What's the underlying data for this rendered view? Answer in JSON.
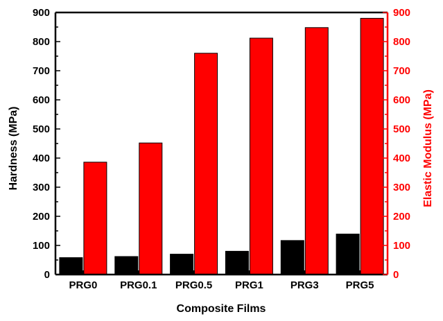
{
  "chart_data": {
    "type": "bar",
    "title": "",
    "xlabel": "Composite Films",
    "ylabel": "Hardness (MPa)",
    "y2label": "Elastic Modulus (MPa)",
    "categories": [
      "PRG0",
      "PRG0.1",
      "PRG0.5",
      "PRG1",
      "PRG3",
      "PRG5"
    ],
    "series": [
      {
        "axis": "left",
        "color": "#000000",
        "values": [
          58,
          62,
          70,
          80,
          117,
          139
        ]
      },
      {
        "axis": "right",
        "color": "#ff0000",
        "values": [
          386,
          452,
          760,
          812,
          848,
          880
        ]
      }
    ],
    "ylim": [
      0,
      900
    ],
    "y2lim": [
      0,
      900
    ],
    "yticks": [
      0,
      100,
      200,
      300,
      400,
      500,
      600,
      700,
      800,
      900
    ],
    "y2ticks": [
      0,
      100,
      200,
      300,
      400,
      500,
      600,
      700,
      800,
      900
    ],
    "left_axis_color": "#000000",
    "right_axis_color": "#ff0000",
    "grid": false,
    "legend": "none"
  }
}
